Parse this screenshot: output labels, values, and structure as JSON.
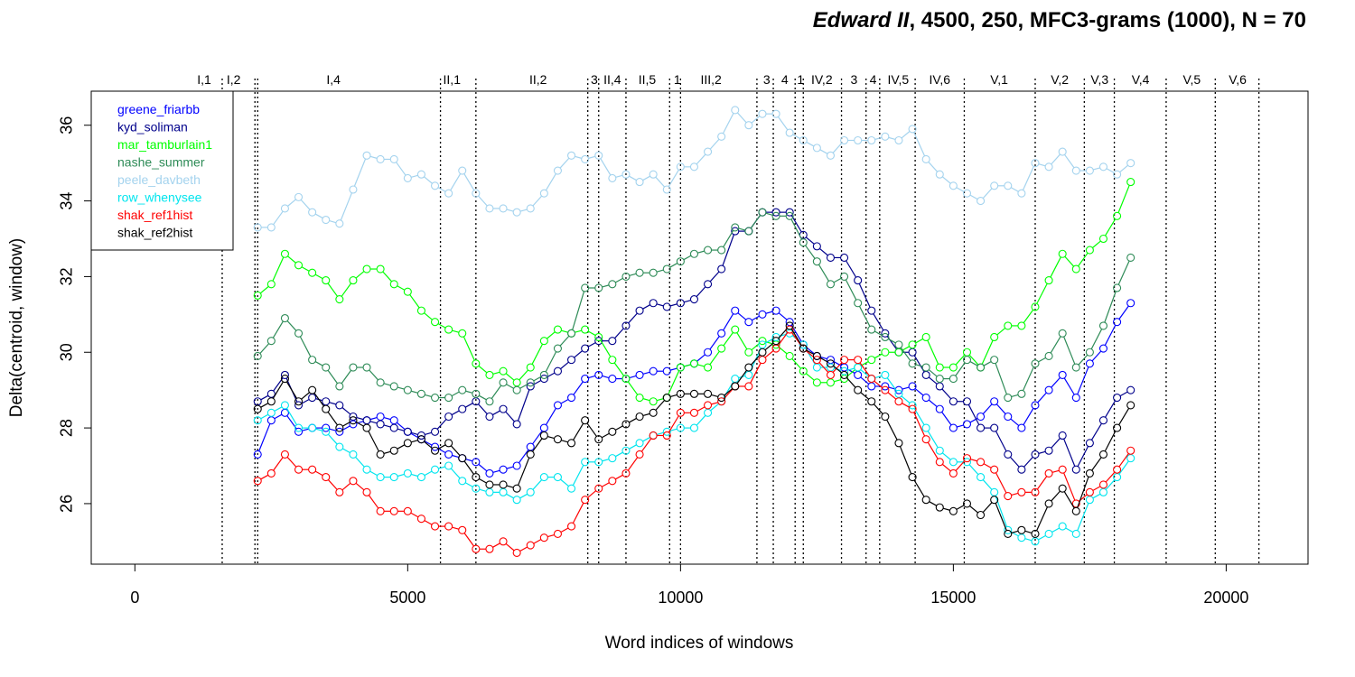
{
  "title": {
    "italic_part": "Edward II",
    "rest": ", 4500, 250, MFC3-grams (1000), N = 70"
  },
  "chart_data": {
    "type": "line",
    "title": "Edward II, 4500, 250, MFC3-grams (1000), N = 70",
    "xlabel": "Word indices of windows",
    "ylabel": "Delta(centroid, window)",
    "xlim": [
      -800,
      21500
    ],
    "ylim": [
      24.4,
      36.9
    ],
    "xticks": [
      0,
      5000,
      10000,
      15000,
      20000
    ],
    "xtick_labels": [
      "0",
      "5000",
      "10000",
      "15000",
      "20000"
    ],
    "yticks": [
      26,
      28,
      30,
      32,
      34,
      36
    ],
    "ytick_labels": [
      "26",
      "28",
      "30",
      "32",
      "34",
      "36"
    ],
    "grid": false,
    "legend_position": "top-left",
    "marker": "open-circle",
    "scene_boundaries": [
      1600,
      2200,
      2250,
      5600,
      6250,
      8300,
      8500,
      9000,
      9800,
      10000,
      11400,
      11700,
      12100,
      12250,
      12950,
      13400,
      13650,
      14300,
      15200,
      16500,
      17400,
      17950,
      18900,
      19800,
      20600
    ],
    "scene_labels": [
      {
        "label": "I,1",
        "x": 1270
      },
      {
        "label": "I,2",
        "x": 1810
      },
      {
        "label": "I,4",
        "x": 3640
      },
      {
        "label": "II,1",
        "x": 5810
      },
      {
        "label": "II,2",
        "x": 7390
      },
      {
        "label": "3",
        "x": 8420
      },
      {
        "label": "II,4",
        "x": 8750
      },
      {
        "label": "II,5",
        "x": 9390
      },
      {
        "label": "1",
        "x": 9940
      },
      {
        "label": "III,2",
        "x": 10560
      },
      {
        "label": "3",
        "x": 11580
      },
      {
        "label": "4",
        "x": 11910
      },
      {
        "label": "1",
        "x": 12200
      },
      {
        "label": "IV,2",
        "x": 12590
      },
      {
        "label": "3",
        "x": 13180
      },
      {
        "label": "4",
        "x": 13530
      },
      {
        "label": "IV,5",
        "x": 13990
      },
      {
        "label": "IV,6",
        "x": 14750
      },
      {
        "label": "V,1",
        "x": 15840
      },
      {
        "label": "V,2",
        "x": 16950
      },
      {
        "label": "V,3",
        "x": 17680
      },
      {
        "label": "V,4",
        "x": 18430
      },
      {
        "label": "V,5",
        "x": 19370
      },
      {
        "label": "V,6",
        "x": 20210
      }
    ],
    "x": [
      2250,
      2500,
      2750,
      3000,
      3250,
      3500,
      3750,
      4000,
      4250,
      4500,
      4750,
      5000,
      5250,
      5500,
      5750,
      6000,
      6250,
      6500,
      6750,
      7000,
      7250,
      7500,
      7750,
      8000,
      8250,
      8500,
      8750,
      9000,
      9250,
      9500,
      9750,
      10000,
      10250,
      10500,
      10750,
      11000,
      11250,
      11500,
      11750,
      12000,
      12250,
      12500,
      12750,
      13000,
      13250,
      13500,
      13750,
      14000,
      14250,
      14500,
      14750,
      15000,
      15250,
      15500,
      15750,
      16000,
      16250,
      16500,
      16750,
      17000,
      17250,
      17500,
      17750,
      18000,
      18250
    ],
    "series": [
      {
        "name": "greene_friarbb",
        "color": "#0000ff",
        "values": [
          27.3,
          28.2,
          28.4,
          27.9,
          28.0,
          28.0,
          27.9,
          28.1,
          28.2,
          28.3,
          28.2,
          27.9,
          27.7,
          27.5,
          27.3,
          27.2,
          27.1,
          26.8,
          26.9,
          27.0,
          27.5,
          28.0,
          28.6,
          28.8,
          29.3,
          29.4,
          29.3,
          29.3,
          29.4,
          29.5,
          29.5,
          29.6,
          29.7,
          30.0,
          30.5,
          31.1,
          30.8,
          31.0,
          31.1,
          30.8,
          30.2,
          29.9,
          29.8,
          29.6,
          29.4,
          29.1,
          29.1,
          29.0,
          29.1,
          28.8,
          28.5,
          28.0,
          28.1,
          28.3,
          28.7,
          28.3,
          28.0,
          28.6,
          29.0,
          29.4,
          28.8,
          29.7,
          30.1,
          30.8,
          31.3
        ]
      },
      {
        "name": "kyd_soliman",
        "color": "#00008b",
        "values": [
          28.7,
          28.9,
          29.4,
          28.6,
          28.8,
          28.7,
          28.6,
          28.3,
          28.2,
          28.1,
          28.0,
          27.9,
          27.8,
          27.9,
          28.3,
          28.5,
          28.7,
          28.3,
          28.5,
          28.1,
          29.1,
          29.3,
          29.5,
          29.8,
          30.1,
          30.3,
          30.3,
          30.7,
          31.1,
          31.3,
          31.2,
          31.3,
          31.4,
          31.8,
          32.2,
          33.2,
          33.2,
          33.7,
          33.7,
          33.7,
          33.1,
          32.8,
          32.5,
          32.5,
          31.9,
          31.1,
          30.5,
          30.0,
          30.0,
          29.4,
          29.1,
          28.7,
          28.7,
          28.0,
          28.0,
          27.3,
          26.9,
          27.3,
          27.4,
          27.8,
          26.9,
          27.6,
          28.2,
          28.8,
          29.0
        ]
      },
      {
        "name": "mar_tamburlain1",
        "color": "#00ff00",
        "values": [
          31.5,
          31.8,
          32.6,
          32.3,
          32.1,
          31.9,
          31.4,
          31.9,
          32.2,
          32.2,
          31.8,
          31.6,
          31.1,
          30.8,
          30.6,
          30.5,
          29.7,
          29.4,
          29.5,
          29.2,
          29.6,
          30.3,
          30.6,
          30.5,
          30.6,
          30.4,
          29.8,
          29.3,
          28.8,
          28.7,
          28.8,
          29.6,
          29.7,
          29.6,
          30.1,
          30.6,
          30.0,
          30.3,
          30.2,
          29.9,
          29.5,
          29.2,
          29.2,
          29.3,
          29.6,
          29.8,
          30.0,
          30.0,
          30.2,
          30.4,
          29.6,
          29.6,
          30.0,
          29.6,
          30.4,
          30.7,
          30.7,
          31.2,
          31.9,
          32.6,
          32.2,
          32.7,
          33.0,
          33.6,
          34.5
        ]
      },
      {
        "name": "nashe_summer",
        "color": "#2e8b57",
        "values": [
          29.9,
          30.3,
          30.9,
          30.5,
          29.8,
          29.6,
          29.1,
          29.6,
          29.6,
          29.2,
          29.1,
          29.0,
          28.9,
          28.8,
          28.8,
          29.0,
          28.9,
          28.7,
          29.2,
          29.0,
          29.2,
          29.4,
          30.1,
          30.5,
          31.7,
          31.7,
          31.8,
          32.0,
          32.1,
          32.1,
          32.2,
          32.4,
          32.6,
          32.7,
          32.7,
          33.3,
          33.2,
          33.7,
          33.6,
          33.6,
          32.9,
          32.4,
          31.8,
          32.0,
          31.3,
          30.6,
          30.4,
          30.2,
          29.7,
          29.6,
          29.3,
          29.3,
          29.8,
          29.6,
          29.8,
          28.8,
          28.9,
          29.7,
          29.9,
          30.5,
          29.6,
          30.0,
          30.7,
          31.7,
          32.5
        ]
      },
      {
        "name": "peele_davbeth",
        "color": "#a4d3ee",
        "values": [
          33.3,
          33.3,
          33.8,
          34.1,
          33.7,
          33.5,
          33.4,
          34.3,
          35.2,
          35.1,
          35.1,
          34.6,
          34.7,
          34.4,
          34.2,
          34.8,
          34.2,
          33.8,
          33.8,
          33.7,
          33.8,
          34.2,
          34.8,
          35.2,
          35.1,
          35.2,
          34.6,
          34.7,
          34.5,
          34.7,
          34.3,
          34.9,
          34.9,
          35.3,
          35.7,
          36.4,
          36.0,
          36.3,
          36.3,
          35.8,
          35.6,
          35.4,
          35.2,
          35.6,
          35.6,
          35.6,
          35.7,
          35.6,
          35.9,
          35.1,
          34.7,
          34.4,
          34.2,
          34.0,
          34.4,
          34.4,
          34.2,
          35.0,
          34.9,
          35.3,
          34.8,
          34.8,
          34.9,
          34.7,
          35.0
        ]
      },
      {
        "name": "row_whenysee",
        "color": "#00e5ee",
        "values": [
          28.2,
          28.4,
          28.6,
          28.0,
          28.0,
          27.9,
          27.5,
          27.3,
          26.9,
          26.7,
          26.7,
          26.8,
          26.7,
          26.9,
          27.0,
          26.6,
          26.4,
          26.3,
          26.3,
          26.1,
          26.3,
          26.7,
          26.7,
          26.4,
          27.1,
          27.1,
          27.2,
          27.4,
          27.6,
          27.8,
          27.9,
          28.0,
          28.0,
          28.4,
          28.7,
          29.3,
          29.4,
          30.2,
          30.4,
          30.5,
          30.2,
          29.6,
          29.6,
          29.5,
          29.6,
          29.3,
          29.4,
          28.9,
          28.6,
          28.0,
          27.4,
          27.1,
          27.1,
          26.7,
          26.3,
          25.3,
          25.1,
          25.0,
          25.2,
          25.4,
          25.2,
          26.1,
          26.3,
          26.7,
          27.2
        ]
      },
      {
        "name": "shak_ref1hist",
        "color": "#ff0000",
        "values": [
          26.6,
          26.8,
          27.3,
          26.9,
          26.9,
          26.7,
          26.3,
          26.6,
          26.3,
          25.8,
          25.8,
          25.8,
          25.6,
          25.4,
          25.4,
          25.3,
          24.8,
          24.8,
          25.0,
          24.7,
          24.9,
          25.1,
          25.2,
          25.4,
          26.1,
          26.4,
          26.6,
          26.8,
          27.3,
          27.8,
          27.8,
          28.4,
          28.4,
          28.6,
          28.7,
          29.1,
          29.1,
          29.8,
          30.1,
          30.6,
          30.1,
          29.8,
          29.4,
          29.8,
          29.8,
          29.3,
          29.0,
          28.7,
          28.5,
          27.7,
          27.1,
          26.8,
          27.2,
          27.1,
          26.9,
          26.2,
          26.3,
          26.3,
          26.8,
          26.9,
          26.0,
          26.3,
          26.5,
          26.9,
          27.4
        ]
      },
      {
        "name": "shak_ref2hist",
        "color": "#000000",
        "values": [
          28.5,
          28.7,
          29.3,
          28.7,
          29.0,
          28.5,
          28.0,
          28.2,
          28.0,
          27.3,
          27.4,
          27.6,
          27.7,
          27.4,
          27.6,
          27.2,
          26.7,
          26.5,
          26.5,
          26.4,
          27.3,
          27.8,
          27.7,
          27.6,
          28.2,
          27.7,
          27.9,
          28.1,
          28.3,
          28.4,
          28.8,
          28.9,
          28.9,
          28.9,
          28.8,
          29.1,
          29.6,
          30.0,
          30.3,
          30.7,
          30.1,
          29.9,
          29.7,
          29.4,
          29.0,
          28.7,
          28.3,
          27.6,
          26.7,
          26.1,
          25.9,
          25.8,
          26.0,
          25.7,
          26.1,
          25.2,
          25.3,
          25.2,
          26.0,
          26.4,
          25.8,
          26.8,
          27.3,
          28.0,
          28.6
        ]
      }
    ]
  }
}
